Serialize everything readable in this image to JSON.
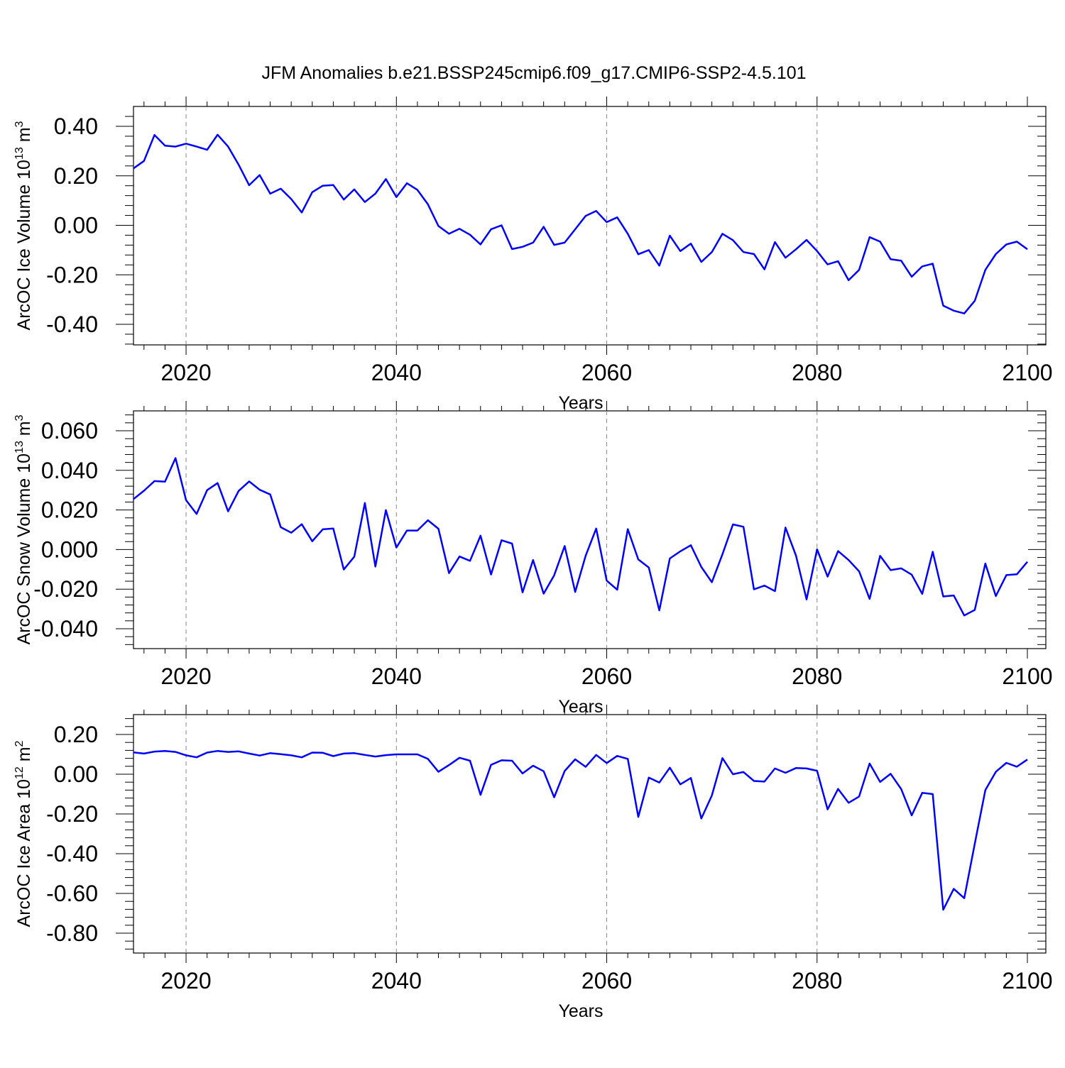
{
  "title": "JFM Anomalies b.e21.BSSP245cmip6.f09_g17.CMIP6-SSP2-4.5.101",
  "colors": {
    "line": "#0000ff",
    "axis": "#000000",
    "grid": "#888888"
  },
  "chart_data": [
    {
      "type": "line",
      "ylabel": "ArcOC Ice Volume 10",
      "ylabel_exp": "13",
      "ylabel_unit": " m",
      "ylabel_unit_exp": "3",
      "xlabel": "Years",
      "xlim": [
        2015,
        2100
      ],
      "ylim": [
        -0.4,
        0.4
      ],
      "xticks": [
        "2020",
        "2040",
        "2060",
        "2080",
        "2100"
      ],
      "yticks": [
        "0.40",
        "0.20",
        "0.00",
        "-0.20",
        "-0.40"
      ],
      "grid": "vertical dashed at major x ticks",
      "series": [
        {
          "x_start": 2015,
          "values": [
            0.23,
            0.26,
            0.365,
            0.322,
            0.318,
            0.33,
            0.318,
            0.305,
            0.366,
            0.318,
            0.245,
            0.162,
            0.203,
            0.128,
            0.148,
            0.106,
            0.052,
            0.134,
            0.16,
            0.163,
            0.104,
            0.145,
            0.094,
            0.128,
            0.187,
            0.114,
            0.17,
            0.143,
            0.085,
            -0.003,
            -0.034,
            -0.014,
            -0.038,
            -0.077,
            -0.016,
            0.0,
            -0.096,
            -0.087,
            -0.07,
            -0.006,
            -0.079,
            -0.07,
            -0.016,
            0.038,
            0.058,
            0.013,
            0.032,
            -0.034,
            -0.117,
            -0.1,
            -0.163,
            -0.042,
            -0.104,
            -0.074,
            -0.148,
            -0.108,
            -0.034,
            -0.06,
            -0.108,
            -0.116,
            -0.178,
            -0.068,
            -0.131,
            -0.097,
            -0.059,
            -0.104,
            -0.158,
            -0.145,
            -0.222,
            -0.18,
            -0.048,
            -0.066,
            -0.137,
            -0.143,
            -0.208,
            -0.166,
            -0.155,
            -0.325,
            -0.345,
            -0.356,
            -0.305,
            -0.18,
            -0.116,
            -0.077,
            -0.066,
            -0.097
          ]
        }
      ]
    },
    {
      "type": "line",
      "ylabel": "ArcOC Snow Volume 10",
      "ylabel_exp": "13",
      "ylabel_unit": " m",
      "ylabel_unit_exp": "3",
      "xlabel": "Years",
      "xlim": [
        2015,
        2100
      ],
      "ylim": [
        -0.04,
        0.06
      ],
      "xticks": [
        "2020",
        "2040",
        "2060",
        "2080",
        "2100"
      ],
      "yticks": [
        "0.060",
        "0.040",
        "0.020",
        "0.000",
        "-0.020",
        "-0.040"
      ],
      "grid": "vertical dashed at major x ticks",
      "series": [
        {
          "x_start": 2015,
          "values": [
            0.0255,
            0.0297,
            0.0346,
            0.0343,
            0.0462,
            0.0249,
            0.018,
            0.03,
            0.0336,
            0.0193,
            0.0296,
            0.0344,
            0.0302,
            0.0278,
            0.0113,
            0.0085,
            0.0128,
            0.0042,
            0.0102,
            0.0106,
            -0.0101,
            -0.0036,
            0.0235,
            -0.0086,
            0.0199,
            0.001,
            0.0096,
            0.0096,
            0.0148,
            0.0105,
            -0.0119,
            -0.0035,
            -0.0057,
            0.007,
            -0.0126,
            0.0047,
            0.003,
            -0.0216,
            -0.0053,
            -0.0223,
            -0.013,
            0.0018,
            -0.0214,
            -0.0031,
            0.0106,
            -0.0157,
            -0.0203,
            0.0103,
            -0.005,
            -0.0091,
            -0.0307,
            -0.0045,
            -0.0009,
            0.0022,
            -0.0088,
            -0.0165,
            -0.0024,
            0.0127,
            0.0115,
            -0.0201,
            -0.0182,
            -0.021,
            0.0111,
            -0.0031,
            -0.0252,
            0.0001,
            -0.0137,
            -0.0008,
            -0.0053,
            -0.011,
            -0.0249,
            -0.0032,
            -0.0104,
            -0.0095,
            -0.0127,
            -0.0224,
            -0.0011,
            -0.0237,
            -0.0232,
            -0.0333,
            -0.0305,
            -0.0071,
            -0.0235,
            -0.0129,
            -0.0125,
            -0.0062
          ]
        }
      ]
    },
    {
      "type": "line",
      "ylabel": "ArcOC Ice Area 10",
      "ylabel_exp": "12",
      "ylabel_unit": " m",
      "ylabel_unit_exp": "2",
      "xlabel": "Years",
      "xlim": [
        2015,
        2100
      ],
      "ylim": [
        -0.8,
        0.2
      ],
      "xticks": [
        "2020",
        "2040",
        "2060",
        "2080",
        "2100"
      ],
      "yticks": [
        "0.20",
        "0.00",
        "-0.20",
        "-0.40",
        "-0.60",
        "-0.80"
      ],
      "grid": "vertical dashed at major x ticks",
      "series": [
        {
          "x_start": 2015,
          "values": [
            0.11,
            0.104,
            0.114,
            0.117,
            0.112,
            0.095,
            0.085,
            0.109,
            0.117,
            0.112,
            0.115,
            0.104,
            0.094,
            0.106,
            0.101,
            0.095,
            0.085,
            0.109,
            0.108,
            0.091,
            0.104,
            0.106,
            0.097,
            0.089,
            0.096,
            0.1,
            0.1,
            0.1,
            0.077,
            0.012,
            0.046,
            0.083,
            0.068,
            -0.104,
            0.047,
            0.07,
            0.068,
            0.004,
            0.043,
            0.015,
            -0.116,
            0.016,
            0.075,
            0.037,
            0.097,
            0.056,
            0.092,
            0.077,
            -0.215,
            -0.017,
            -0.042,
            0.033,
            -0.051,
            -0.019,
            -0.223,
            -0.107,
            0.081,
            0.0,
            0.011,
            -0.034,
            -0.037,
            0.029,
            0.007,
            0.031,
            0.029,
            0.017,
            -0.177,
            -0.074,
            -0.144,
            -0.112,
            0.054,
            -0.039,
            0.002,
            -0.075,
            -0.207,
            -0.094,
            -0.1,
            -0.682,
            -0.577,
            -0.624,
            -0.35,
            -0.08,
            0.012,
            0.057,
            0.038,
            0.074
          ]
        }
      ]
    }
  ]
}
